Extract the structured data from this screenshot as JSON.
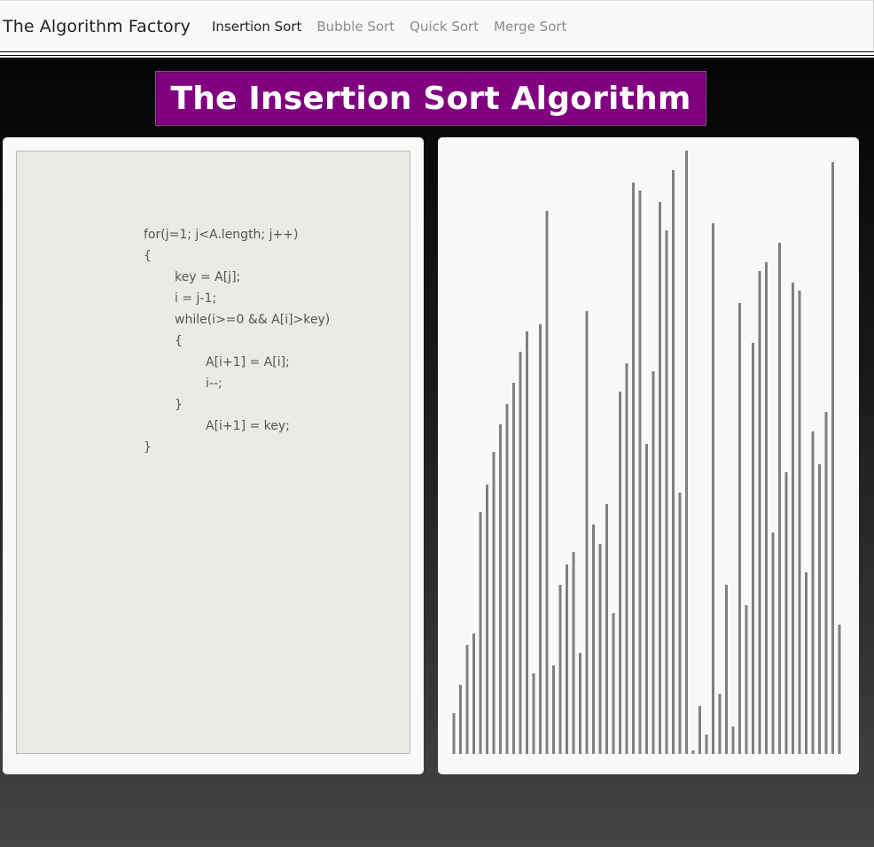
{
  "navbar": {
    "brand": "The Algorithm Factory",
    "links": [
      {
        "label": "Insertion Sort",
        "active": true
      },
      {
        "label": "Bubble Sort",
        "active": false
      },
      {
        "label": "Quick Sort",
        "active": false
      },
      {
        "label": "Merge Sort",
        "active": false
      }
    ]
  },
  "title": "The Insertion Sort Algorithm",
  "code": {
    "lines": [
      {
        "text": "for(j=1; j<A.length; j++)",
        "indent": 0
      },
      {
        "text": "{",
        "indent": 0
      },
      {
        "text": "key = A[j];",
        "indent": 1
      },
      {
        "text": "i = j-1;",
        "indent": 1
      },
      {
        "text": "while(i>=0 && A[i]>key)",
        "indent": 1
      },
      {
        "text": "{",
        "indent": 1
      },
      {
        "text": "A[i+1] = A[i];",
        "indent": 2
      },
      {
        "text": "i--;",
        "indent": 2
      },
      {
        "text": "}",
        "indent": 1
      },
      {
        "text": "A[i+1] = key;",
        "indent": 2
      },
      {
        "text": "}",
        "indent": 0
      }
    ]
  },
  "visualization": {
    "bar_color": "#808080",
    "title_bg": "#800080",
    "bar_heights": [
      46,
      78,
      123,
      136,
      273,
      304,
      341,
      372,
      395,
      419,
      454,
      477,
      91,
      485,
      613,
      100,
      191,
      214,
      228,
      114,
      500,
      259,
      237,
      282,
      159,
      409,
      441,
      645,
      636,
      350,
      432,
      623,
      591,
      659,
      295,
      681,
      4,
      54,
      22,
      599,
      68,
      191,
      31,
      509,
      168,
      464,
      545,
      555,
      250,
      577,
      318,
      532,
      523,
      205,
      364,
      327,
      386,
      668,
      146
    ]
  }
}
